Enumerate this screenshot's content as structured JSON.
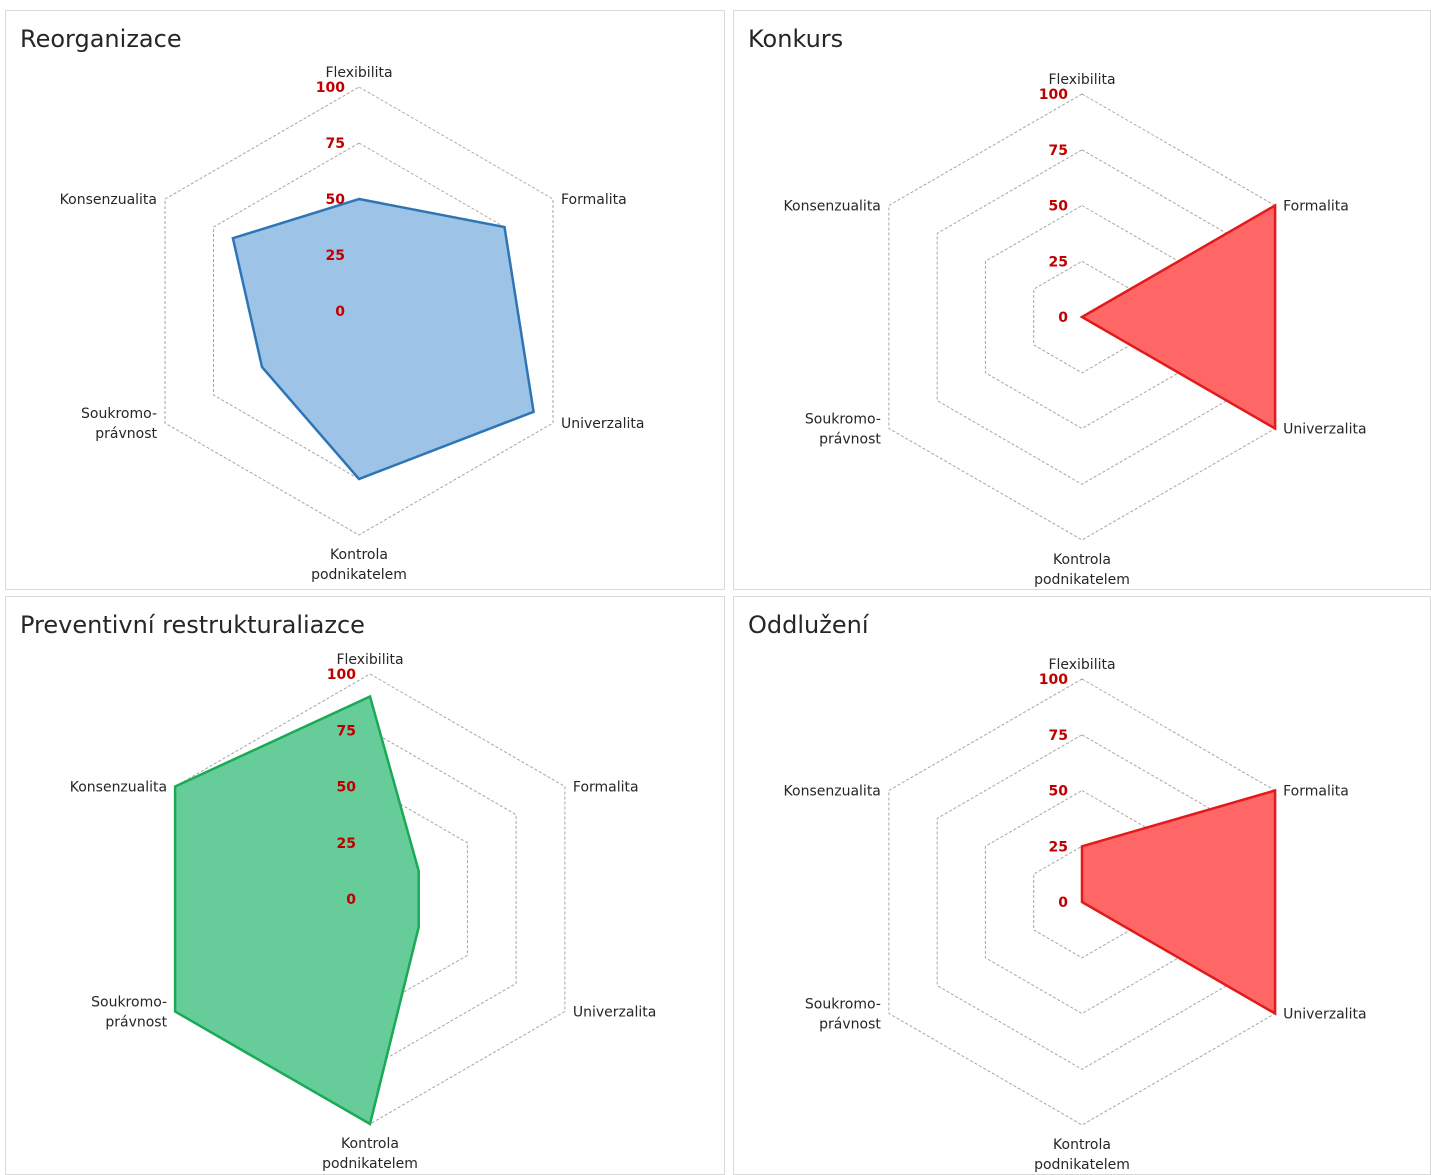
{
  "chart_data": [
    {
      "type": "radar",
      "title": "Reorganizace",
      "categories": [
        "Flexibilita",
        "Formalita",
        "Univerzalita",
        "Kontrola podnikatelem",
        "Soukromo-právnost",
        "Konsenzualita"
      ],
      "category_lines": [
        [
          "Flexibilita"
        ],
        [
          "Formalita"
        ],
        [
          "Univerzalita"
        ],
        [
          "Kontrola",
          "podnikatelem"
        ],
        [
          "Soukromo-",
          "právnost"
        ],
        [
          "Konsenzualita"
        ]
      ],
      "values": [
        50,
        75,
        90,
        75,
        50,
        65
      ],
      "rlim": [
        0,
        100
      ],
      "ticks": [
        "0",
        "25",
        "50",
        "75",
        "100"
      ],
      "fill_color": "#9dc3e6",
      "line_color": "#2e75b6"
    },
    {
      "type": "radar",
      "title": "Konkurs",
      "categories": [
        "Flexibilita",
        "Formalita",
        "Univerzalita",
        "Kontrola podnikatelem",
        "Soukromo-právnost",
        "Konsenzualita"
      ],
      "category_lines": [
        [
          "Flexibilita"
        ],
        [
          "Formalita"
        ],
        [
          "Univerzalita"
        ],
        [
          "Kontrola",
          "podnikatelem"
        ],
        [
          "Soukromo-",
          "právnost"
        ],
        [
          "Konsenzualita"
        ]
      ],
      "values": [
        0,
        100,
        100,
        0,
        0,
        0
      ],
      "rlim": [
        0,
        100
      ],
      "ticks": [
        "0",
        "25",
        "50",
        "75",
        "100"
      ],
      "fill_color": "#ff6666",
      "line_color": "#e31a1c"
    },
    {
      "type": "radar",
      "title": "Preventivní restrukturaliazce",
      "categories": [
        "Flexibilita",
        "Formalita",
        "Univerzalita",
        "Kontrola podnikatelem",
        "Soukromo-právnost",
        "Konsenzualita"
      ],
      "category_lines": [
        [
          "Flexibilita"
        ],
        [
          "Formalita"
        ],
        [
          "Univerzalita"
        ],
        [
          "Kontrola",
          "podnikatelem"
        ],
        [
          "Soukromo-",
          "právnost"
        ],
        [
          "Konsenzualita"
        ]
      ],
      "values": [
        90,
        25,
        25,
        100,
        100,
        100
      ],
      "rlim": [
        0,
        100
      ],
      "ticks": [
        "0",
        "25",
        "50",
        "75",
        "100"
      ],
      "fill_color": "#66cc99",
      "line_color": "#1aaa55"
    },
    {
      "type": "radar",
      "title": "Oddlužení",
      "categories": [
        "Flexibilita",
        "Formalita",
        "Univerzalita",
        "Kontrola podnikatelem",
        "Soukromo-právnost",
        "Konsenzualita"
      ],
      "category_lines": [
        [
          "Flexibilita"
        ],
        [
          "Formalita"
        ],
        [
          "Univerzalita"
        ],
        [
          "Kontrola",
          "podnikatelem"
        ],
        [
          "Soukromo-",
          "právnost"
        ],
        [
          "Konsenzualita"
        ]
      ],
      "values": [
        25,
        100,
        100,
        0,
        0,
        0
      ],
      "rlim": [
        0,
        100
      ],
      "ticks": [
        "0",
        "25",
        "50",
        "75",
        "100"
      ],
      "fill_color": "#ff6666",
      "line_color": "#e31a1c"
    }
  ]
}
